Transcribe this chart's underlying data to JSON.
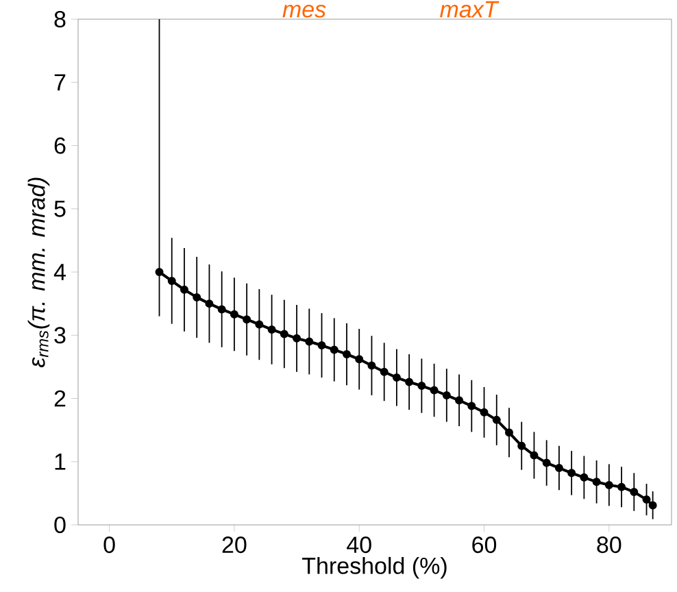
{
  "chart_data": {
    "type": "line",
    "xlabel": "Threshold (%)",
    "ylabel": "ε$_{rms}$(π. mm. mrad)",
    "annotations": [
      "mes",
      "maxT"
    ],
    "x": [
      8,
      10,
      12,
      14,
      16,
      18,
      20,
      22,
      24,
      26,
      28,
      30,
      32,
      34,
      36,
      38,
      40,
      42,
      44,
      46,
      48,
      50,
      52,
      54,
      56,
      58,
      60,
      62,
      64,
      66,
      68,
      70,
      72,
      74,
      76,
      78,
      80,
      82,
      84,
      86,
      87
    ],
    "series": [
      {
        "color": "#000000",
        "values": [
          4.0,
          3.86,
          3.72,
          3.6,
          3.5,
          3.41,
          3.33,
          3.25,
          3.17,
          3.09,
          3.02,
          2.95,
          2.9,
          2.84,
          2.77,
          2.7,
          2.62,
          2.52,
          2.42,
          2.33,
          2.26,
          2.2,
          2.13,
          2.05,
          1.97,
          1.88,
          1.78,
          1.66,
          1.46,
          1.25,
          1.1,
          0.98,
          0.9,
          0.82,
          0.75,
          0.68,
          0.63,
          0.6,
          0.52,
          0.4,
          0.31
        ],
        "errors": [
          [
            3.3,
            8
          ],
          0.68,
          0.66,
          0.64,
          0.62,
          0.6,
          0.58,
          0.57,
          0.56,
          0.55,
          0.54,
          0.53,
          0.52,
          0.51,
          0.5,
          0.49,
          0.48,
          0.47,
          0.46,
          0.45,
          0.44,
          0.43,
          0.42,
          0.42,
          0.41,
          0.41,
          0.4,
          0.4,
          0.39,
          0.38,
          0.37,
          0.36,
          0.35,
          0.35,
          0.34,
          0.34,
          0.33,
          0.32,
          0.3,
          0.25,
          0.22
        ]
      }
    ],
    "marker": "circle",
    "xlim": [
      -5,
      90
    ],
    "ylim": [
      0,
      8
    ],
    "xticks": [
      0,
      20,
      40,
      60,
      80
    ],
    "yticks": [
      0,
      1,
      2,
      3,
      4,
      5,
      6,
      7,
      8
    ],
    "grid": false
  }
}
